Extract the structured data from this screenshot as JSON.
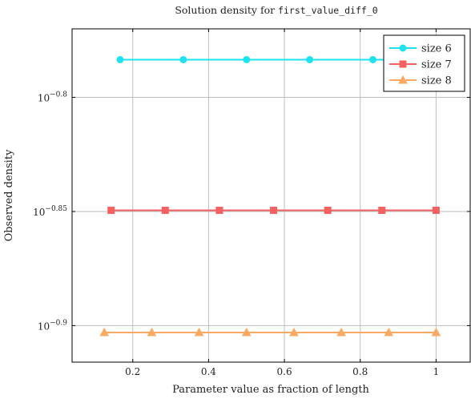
{
  "chart_data": {
    "type": "line",
    "title_prefix": "Solution density for ",
    "title_code": "first_value_diff_0",
    "xlabel": "Parameter value as fraction of length",
    "ylabel": "Observed density",
    "xlim": [
      0.04,
      1.09
    ],
    "ylim": [
      -0.916,
      -0.77
    ],
    "y_scale": "log",
    "x_ticks": [
      {
        "value": 0.2,
        "label": "0.2"
      },
      {
        "value": 0.4,
        "label": "0.4"
      },
      {
        "value": 0.6,
        "label": "0.6"
      },
      {
        "value": 0.8,
        "label": "0.8"
      },
      {
        "value": 1.0,
        "label": "1"
      }
    ],
    "y_ticks": [
      {
        "value": -0.8,
        "base": "10",
        "exp": "−0.8"
      },
      {
        "value": -0.85,
        "base": "10",
        "exp": "−0.85"
      },
      {
        "value": -0.9,
        "base": "10",
        "exp": "−0.9"
      }
    ],
    "grid": true,
    "legend_position": "top-right",
    "series": [
      {
        "name": "size 6",
        "color": "#1ee3ee",
        "marker": "circle",
        "x": [
          0.1667,
          0.3333,
          0.5,
          0.6667,
          0.8333,
          1.0
        ],
        "y_log10": [
          -0.7835,
          -0.7835,
          -0.7835,
          -0.7835,
          -0.7835,
          -0.7835
        ]
      },
      {
        "name": "size 7",
        "color": "#f56161",
        "marker": "square",
        "x": [
          0.1429,
          0.2857,
          0.4286,
          0.5714,
          0.7143,
          0.8571,
          1.0
        ],
        "y_log10": [
          -0.8495,
          -0.8495,
          -0.8495,
          -0.8495,
          -0.8495,
          -0.8495,
          -0.8495
        ]
      },
      {
        "name": "size 8",
        "color": "#f9a962",
        "marker": "triangle",
        "x": [
          0.125,
          0.25,
          0.375,
          0.5,
          0.625,
          0.75,
          0.875,
          1.0
        ],
        "y_log10": [
          -0.903,
          -0.903,
          -0.903,
          -0.903,
          -0.903,
          -0.903,
          -0.903,
          -0.903
        ]
      }
    ]
  }
}
